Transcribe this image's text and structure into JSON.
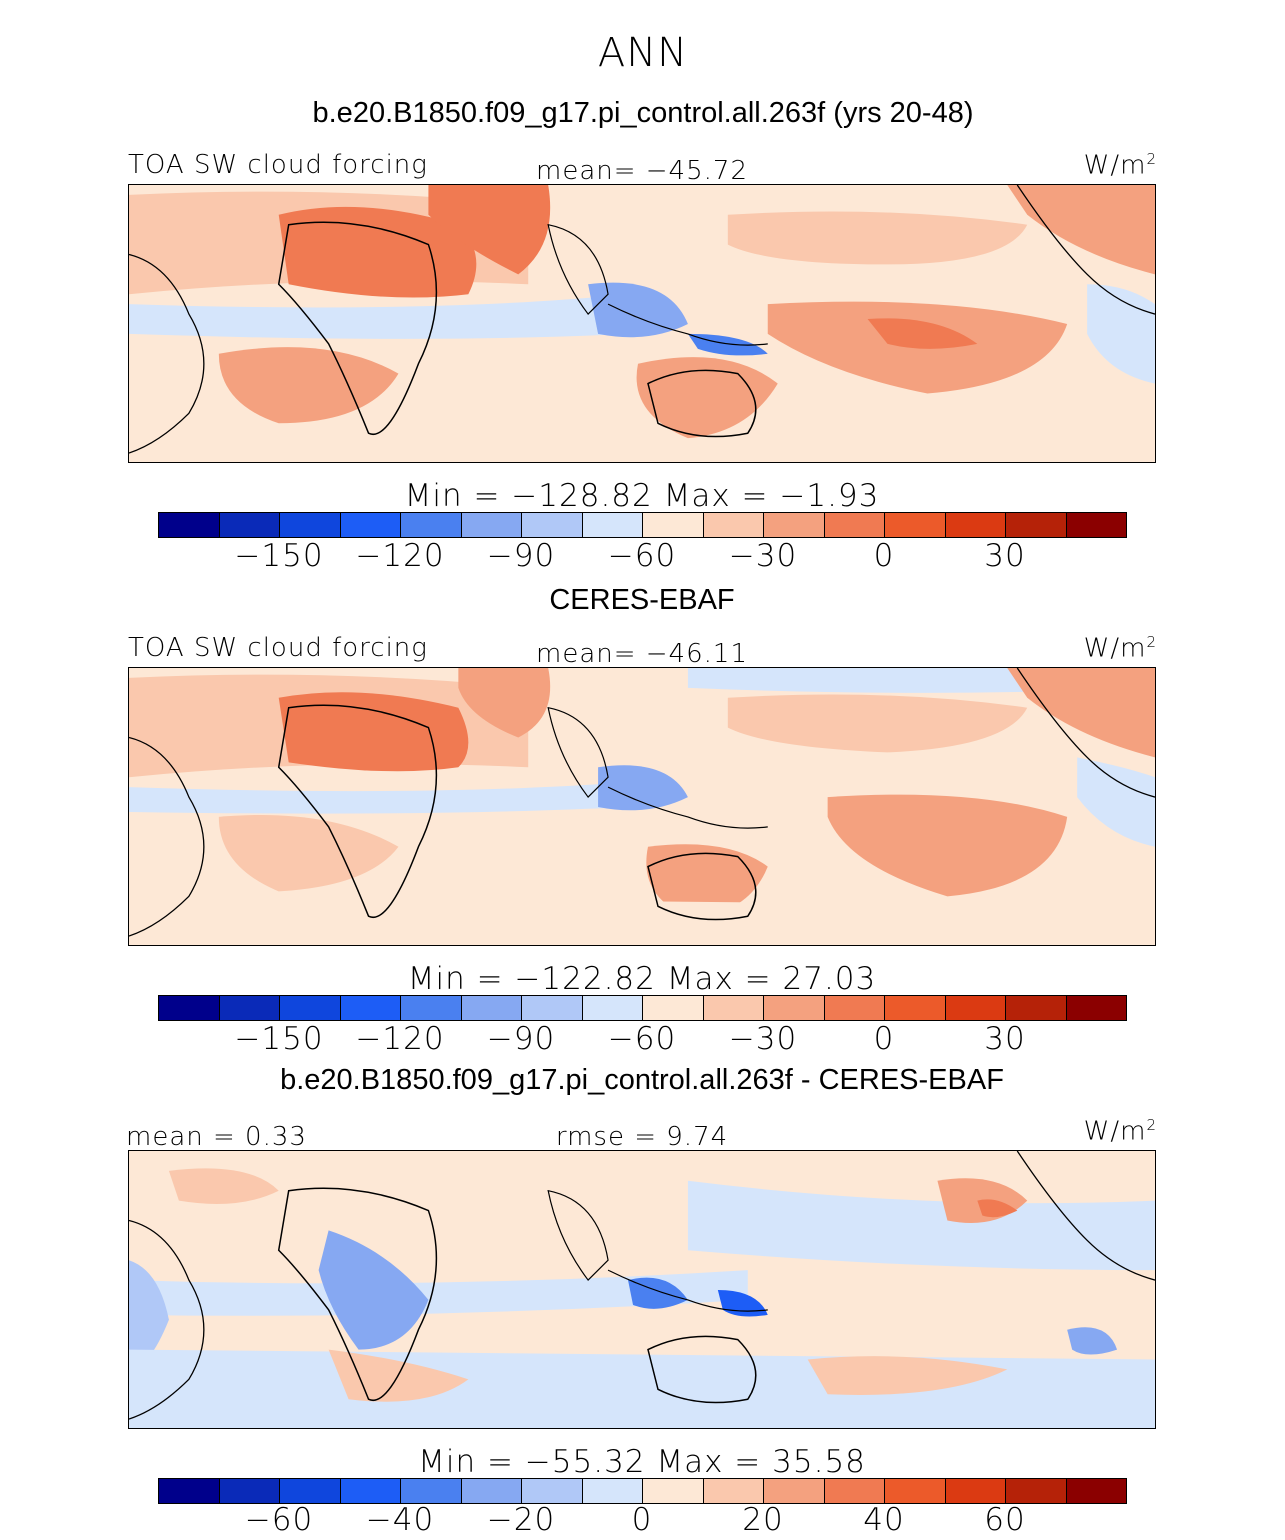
{
  "figure": {
    "season": "ANN",
    "case_title": "b.e20.B1850.f09_g17.pi_control.all.263f (yrs 20-48)",
    "colors": {
      "palette": [
        "#00008b",
        "#0a2ab8",
        "#0f46dd",
        "#1d5df6",
        "#4a80f0",
        "#86a8f2",
        "#b0c8f7",
        "#d5e5fb",
        "#fde8d6",
        "#fac8ad",
        "#f4a17f",
        "#f07a52",
        "#ec5a2a",
        "#db3a12",
        "#b52208",
        "#8b0000"
      ]
    }
  },
  "panels": [
    {
      "id": "model",
      "left_label": "TOA SW cloud forcing",
      "center_label": "mean= −45.72",
      "units_label": "W/m",
      "units_sup": "2",
      "minmax": "Min  =  −128.82  Max  =   −1.93",
      "ticks": [
        "−150",
        "−120",
        "−90",
        "−60",
        "−30",
        "0",
        "30"
      ]
    },
    {
      "id": "obs",
      "heading": "CERES-EBAF",
      "left_label": "TOA SW cloud forcing",
      "center_label": "mean= −46.11",
      "units_label": "W/m",
      "units_sup": "2",
      "minmax": "Min  =  −122.82  Max  =   27.03",
      "ticks": [
        "−150",
        "−120",
        "−90",
        "−60",
        "−30",
        "0",
        "30"
      ]
    },
    {
      "id": "diff",
      "heading": "b.e20.B1850.f09_g17.pi_control.all.263f - CERES-EBAF",
      "left_label": "mean =    0.33",
      "center_label": "rmse =    9.74",
      "units_label": "W/m",
      "units_sup": "2",
      "minmax": "Min  =  −55.32  Max  =   35.58",
      "ticks": [
        "−60",
        "−40",
        "−20",
        "0",
        "20",
        "40",
        "60"
      ]
    }
  ]
}
